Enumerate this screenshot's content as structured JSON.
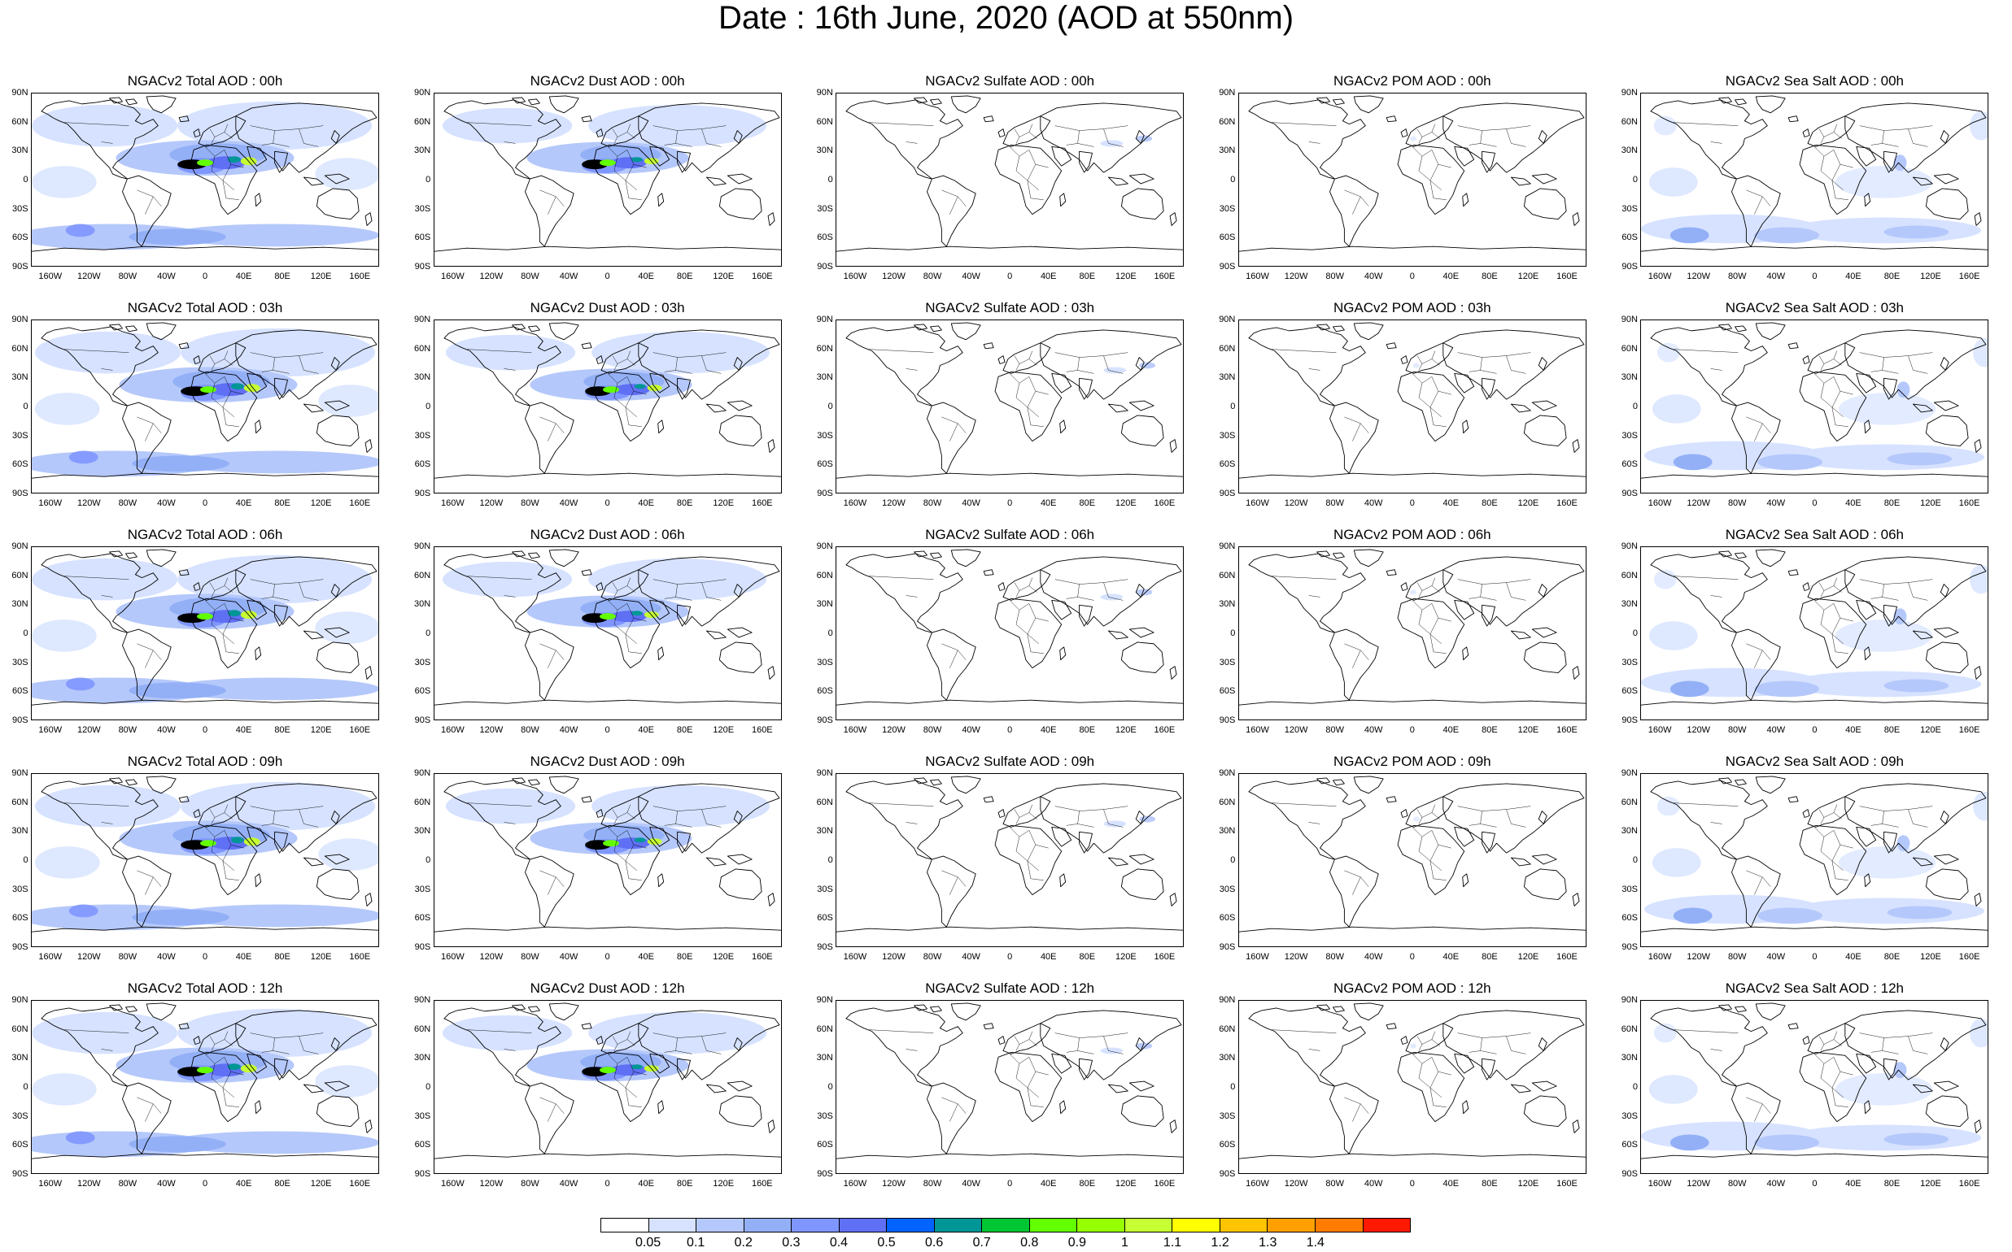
{
  "title": "Date : 16th June, 2020 (AOD at 550nm)",
  "y_ticks": [
    "90N",
    "60N",
    "30N",
    "0",
    "30S",
    "60S",
    "90S"
  ],
  "x_ticks": [
    "160W",
    "120W",
    "80W",
    "40W",
    "0",
    "40E",
    "80E",
    "120E",
    "160E"
  ],
  "variables": [
    {
      "key": "total",
      "name": "Total AOD"
    },
    {
      "key": "dust",
      "name": "Dust AOD"
    },
    {
      "key": "sulfate",
      "name": "Sulfate AOD"
    },
    {
      "key": "pom",
      "name": "POM AOD"
    },
    {
      "key": "seasalt",
      "name": "Sea Salt AOD"
    }
  ],
  "panels": [
    [
      "NGACv2 Total AOD : 00h",
      "NGACv2 Dust AOD : 00h",
      "NGACv2 Sulfate AOD : 00h",
      "NGACv2 POM AOD : 00h",
      "NGACv2 Sea Salt AOD : 00h"
    ],
    [
      "NGACv2 Total AOD : 03h",
      "NGACv2 Dust AOD : 03h",
      "NGACv2 Sulfate AOD : 03h",
      "NGACv2 POM AOD : 03h",
      "NGACv2 Sea Salt AOD : 03h"
    ],
    [
      "NGACv2 Total AOD : 06h",
      "NGACv2 Dust AOD : 06h",
      "NGACv2 Sulfate AOD : 06h",
      "NGACv2 POM AOD : 06h",
      "NGACv2 Sea Salt AOD : 06h"
    ],
    [
      "NGACv2 Total AOD : 09h",
      "NGACv2 Dust AOD : 09h",
      "NGACv2 Sulfate AOD : 09h",
      "NGACv2 POM AOD : 09h",
      "NGACv2 Sea Salt  AOD : 09h"
    ],
    [
      "NGACv2 Total AOD  : 12h",
      "NGACv2 Dust AOD : 12h",
      "NGACv2 Sulfate AOD : 12h",
      "NGACv2 POM  AOD : 12h",
      "NGACv2 Sea Salt  AOD : 12h"
    ]
  ],
  "colorbar": {
    "labels": [
      "0.05",
      "0.1",
      "0.2",
      "0.3",
      "0.4",
      "0.5",
      "0.6",
      "0.7",
      "0.8",
      "0.9",
      "1",
      "1.1",
      "1.2",
      "1.3",
      "1.4"
    ],
    "colors": [
      "#ffffff",
      "#d6e2ff",
      "#b5c8fb",
      "#93b0f7",
      "#7f96ff",
      "#6070f4",
      "#0063ff",
      "#009696",
      "#00c633",
      "#63ff00",
      "#96ff00",
      "#c6ff33",
      "#ffff00",
      "#ffc400",
      "#ffa000",
      "#ff7c00",
      "#ff1900"
    ]
  }
}
